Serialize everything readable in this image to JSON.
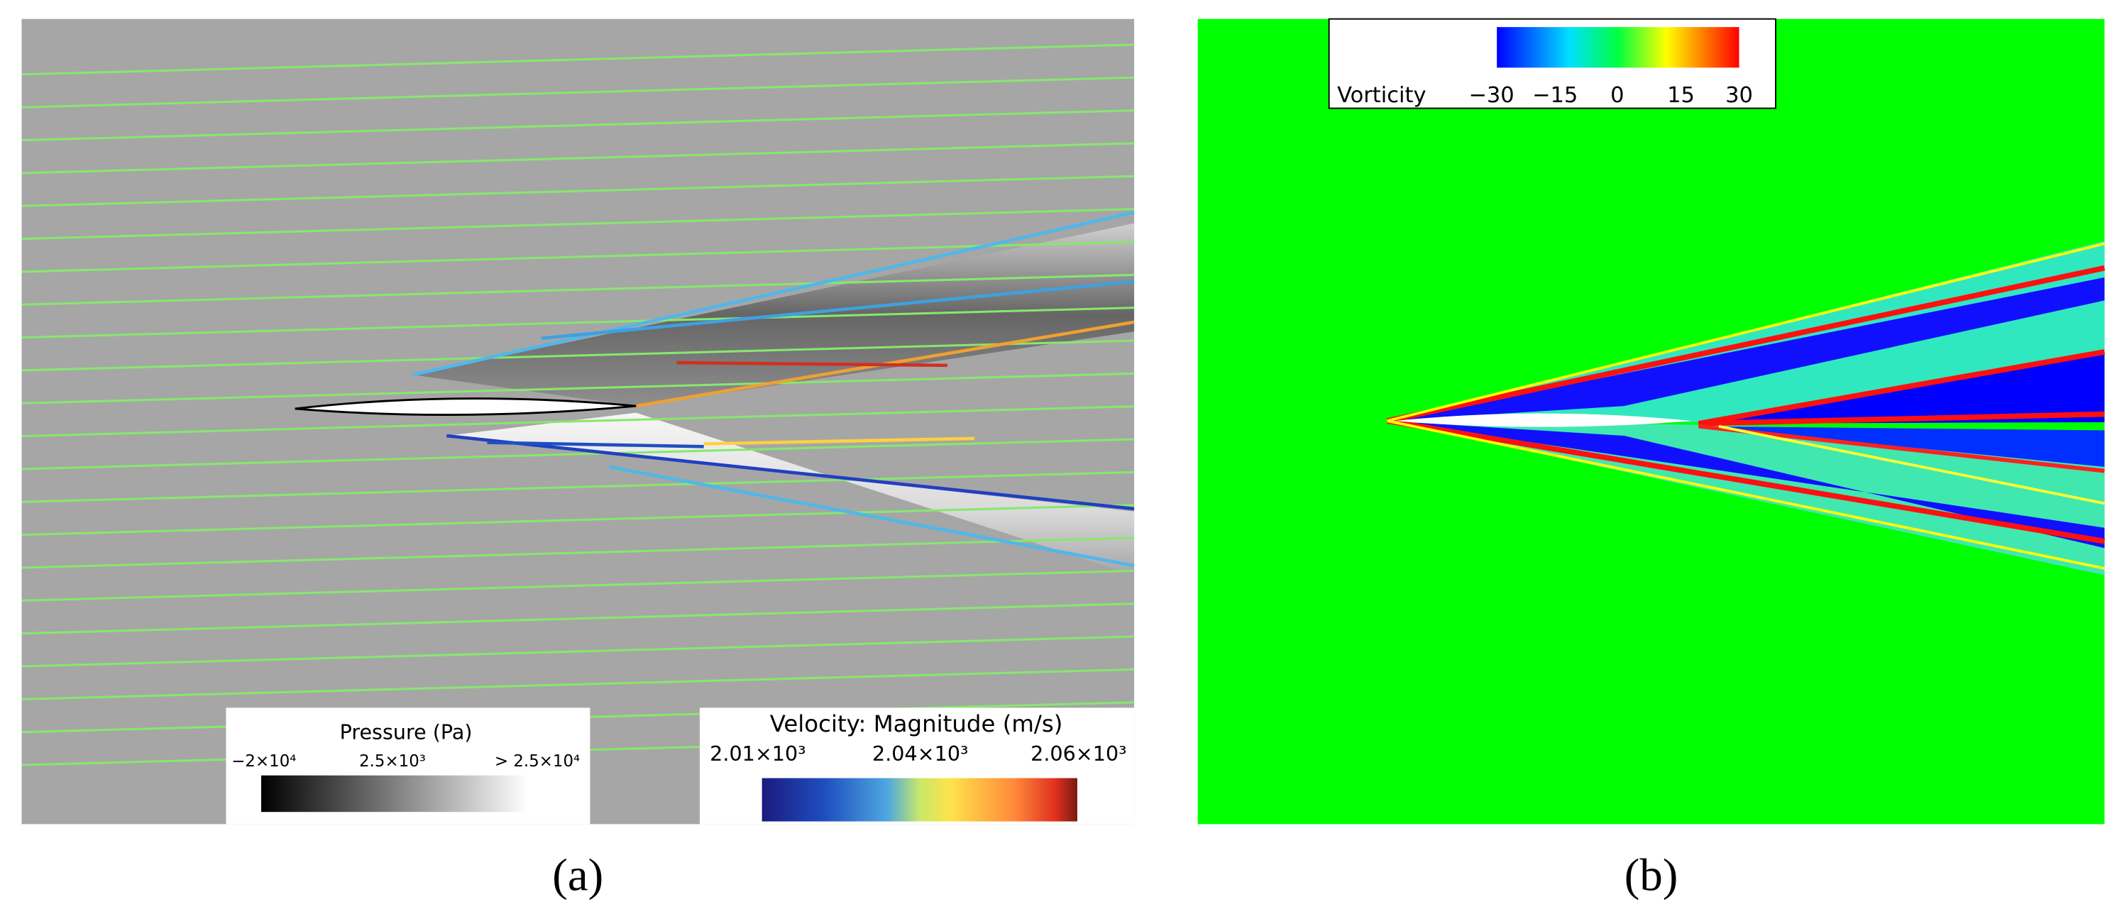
{
  "panels": [
    {
      "label": "(a)",
      "legends": [
        {
          "title": "Pressure (Pa)",
          "ticks": [
            "−2×10⁴",
            "2.5×10³",
            "> 2.5×10⁴"
          ]
        },
        {
          "title": "Velocity: Magnitude (m/s)",
          "ticks": [
            "2.01×10³",
            "2.04×10³",
            "2.06×10³"
          ]
        }
      ]
    },
    {
      "label": "(b)",
      "legends": [
        {
          "title": "Vorticity",
          "ticks": [
            "−30",
            "−15",
            "0",
            "15",
            "30"
          ]
        }
      ]
    }
  ]
}
